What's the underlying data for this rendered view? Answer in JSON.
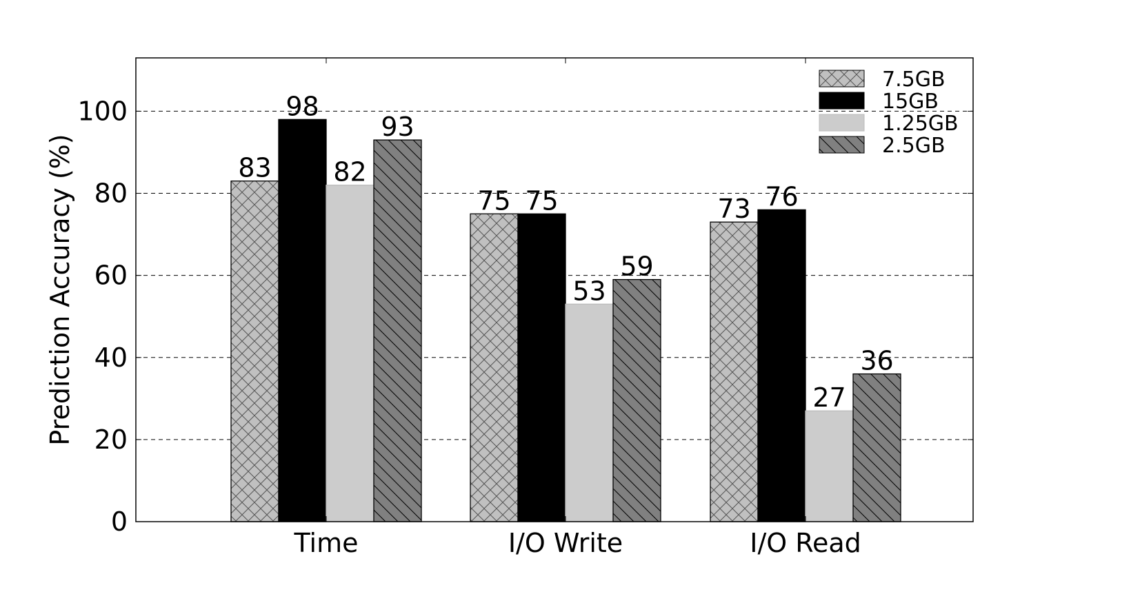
{
  "chart_data": {
    "type": "bar",
    "title": "",
    "xlabel": "",
    "ylabel": "Prediction Accuracy (%)",
    "ylim": [
      0,
      113
    ],
    "yticks": [
      0,
      20,
      40,
      60,
      80,
      100
    ],
    "grid": "horizontal dashed",
    "legend_position": "top-right",
    "categories": [
      "Time",
      "I/O Write",
      "I/O Read"
    ],
    "series": [
      {
        "name": "7.5GB",
        "values": [
          83,
          75,
          73
        ],
        "color": "#c0c0c0",
        "pattern": "crosshatch"
      },
      {
        "name": "15GB",
        "values": [
          98,
          75,
          76
        ],
        "color": "#000000",
        "pattern": "solid"
      },
      {
        "name": "1.25GB",
        "values": [
          82,
          53,
          27
        ],
        "color": "#cccccc",
        "pattern": "solid"
      },
      {
        "name": "2.5GB",
        "values": [
          93,
          59,
          36
        ],
        "color": "#808080",
        "pattern": "backslash"
      }
    ]
  }
}
